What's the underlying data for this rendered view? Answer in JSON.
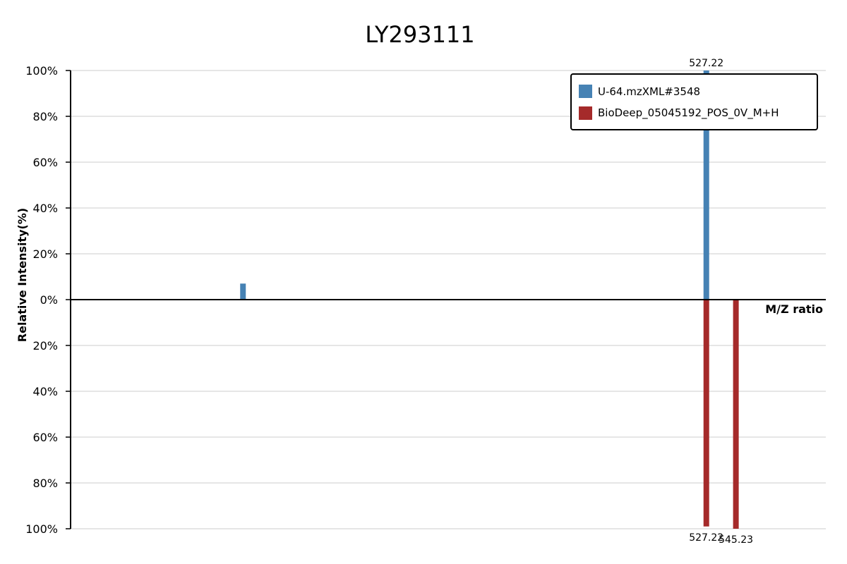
{
  "chart_data": {
    "type": "bar",
    "title": "LY293111",
    "xlabel": "M/Z ratio",
    "ylabel": "Relative Intensity(%)",
    "ylim_top": [
      0,
      100
    ],
    "ylim_bottom": [
      0,
      100
    ],
    "y_ticks_top": [
      "100%",
      "80%",
      "60%",
      "40%",
      "20%",
      "0%"
    ],
    "y_ticks_bottom": [
      "20%",
      "40%",
      "60%",
      "80%",
      "100%"
    ],
    "x_range": [
      140,
      600
    ],
    "grid": true,
    "legend_position": "top-right",
    "series": [
      {
        "name": "U-64.mzXML#3548",
        "color": "#4682b4",
        "direction": "up",
        "peaks": [
          {
            "mz": 245.0,
            "intensity": 7,
            "label": ""
          },
          {
            "mz": 527.22,
            "intensity": 100,
            "label": "527.22"
          }
        ]
      },
      {
        "name": "BioDeep_05045192_POS_0V_M+H",
        "color": "#a52a2a",
        "direction": "down",
        "peaks": [
          {
            "mz": 527.22,
            "intensity": 99,
            "label": "527.22"
          },
          {
            "mz": 545.23,
            "intensity": 100,
            "label": "545.23"
          }
        ]
      }
    ]
  }
}
